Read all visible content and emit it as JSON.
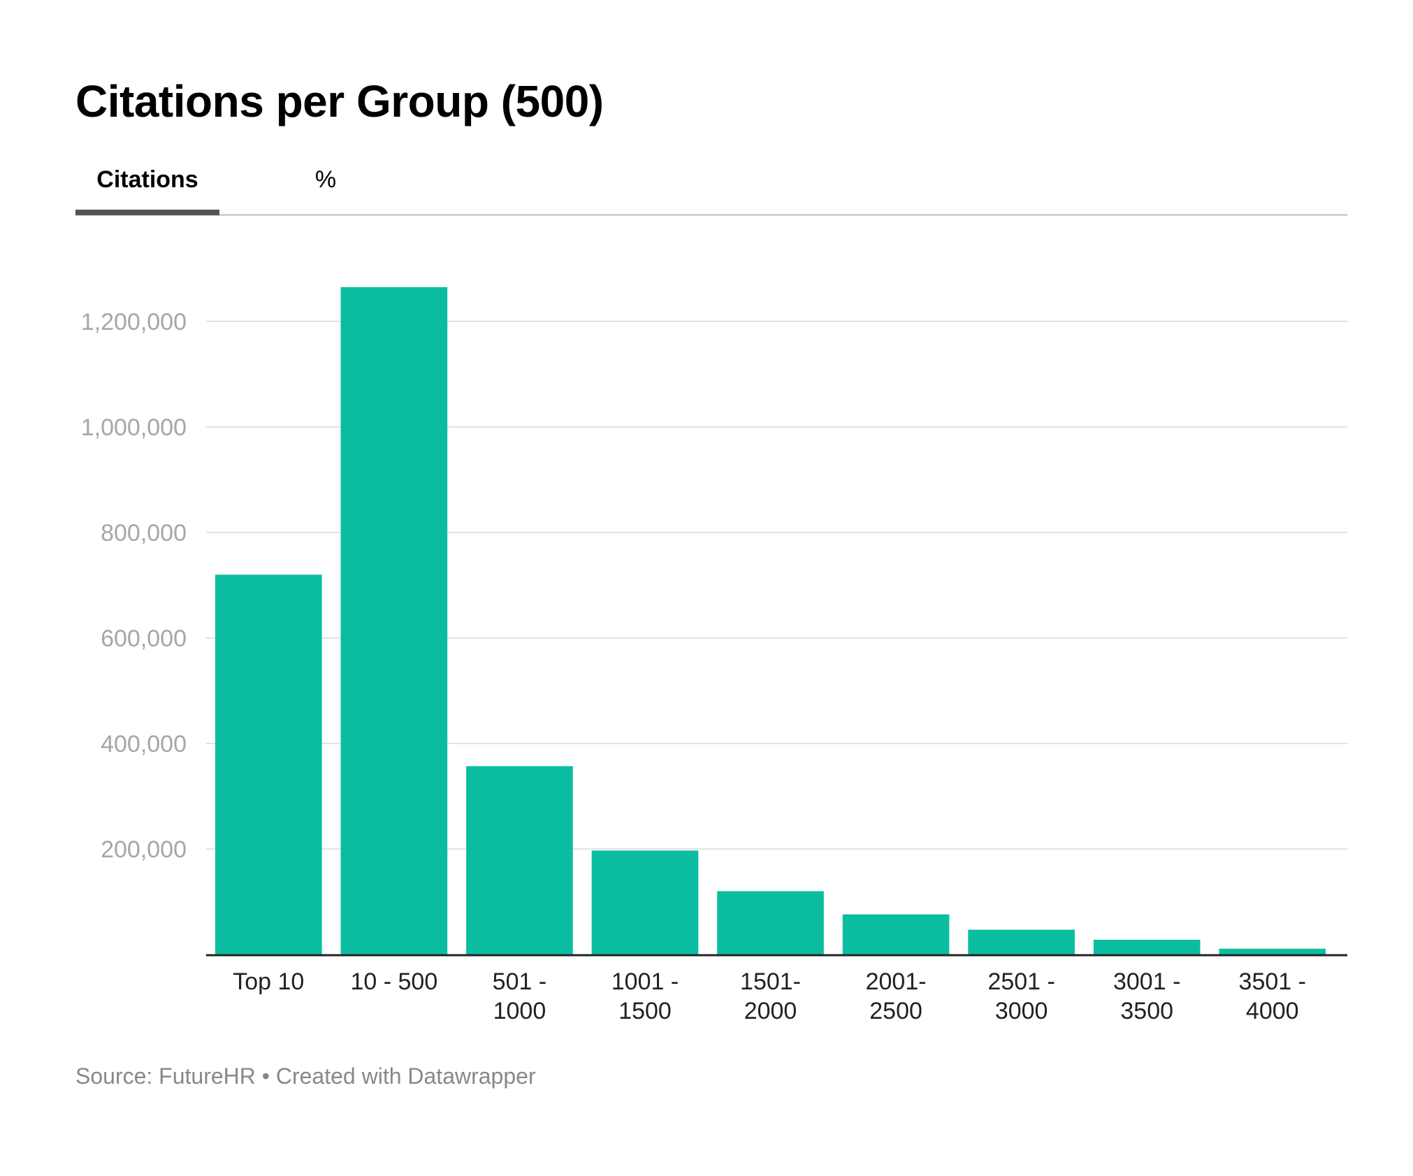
{
  "title": "Citations per Group (500)",
  "tabs": [
    {
      "label": "Citations",
      "active": true
    },
    {
      "label": "%",
      "active": false
    }
  ],
  "footer": {
    "source": "Source: FutureHR",
    "separator": " • ",
    "credit": "Created with Datawrapper"
  },
  "colors": {
    "bar": "#0bbda0",
    "grid": "#e2e2e2",
    "axis": "#222222",
    "tick_label": "#a6a6a6",
    "category_label": "#222222"
  },
  "chart_data": {
    "type": "bar",
    "title": "Citations per Group (500)",
    "xlabel": "",
    "ylabel": "",
    "ylim": [
      0,
      1300000
    ],
    "yticks": [
      200000,
      400000,
      600000,
      800000,
      1000000,
      1200000
    ],
    "ytick_labels": [
      "200,000",
      "400,000",
      "600,000",
      "800,000",
      "1,000,000",
      "1,200,000"
    ],
    "grid": true,
    "categories": [
      [
        "Top 10"
      ],
      [
        "10 - 500"
      ],
      [
        "501 -",
        "1000"
      ],
      [
        "1001 -",
        "1500"
      ],
      [
        "1501-",
        "2000"
      ],
      [
        "2001-",
        "2500"
      ],
      [
        "2501 -",
        "3000"
      ],
      [
        "3001 -",
        "3500"
      ],
      [
        "3501 -",
        "4000"
      ]
    ],
    "values": [
      720000,
      1265000,
      357000,
      197000,
      120000,
      76000,
      47000,
      28000,
      11000
    ]
  }
}
